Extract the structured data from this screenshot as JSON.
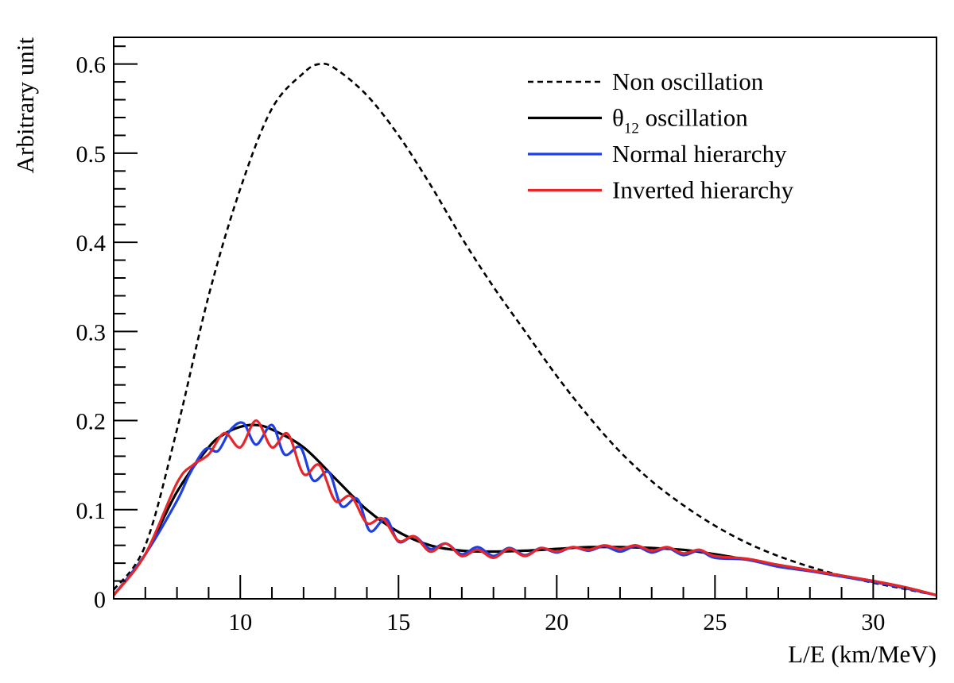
{
  "chart_data": {
    "type": "line",
    "xlabel": "L/E (km/MeV)",
    "ylabel": "Arbitrary unit",
    "xlim": [
      6,
      32
    ],
    "ylim": [
      0,
      0.63
    ],
    "x_ticks": [
      10,
      15,
      20,
      25,
      30
    ],
    "x_tick_labels": [
      "10",
      "15",
      "20",
      "25",
      "30"
    ],
    "y_ticks": [
      0,
      0.1,
      0.2,
      0.3,
      0.4,
      0.5,
      0.6
    ],
    "y_tick_labels": [
      "0",
      "0.1",
      "0.2",
      "0.3",
      "0.4",
      "0.5",
      "0.6"
    ],
    "grid": false,
    "legend_position": "top-right",
    "series": [
      {
        "name": "Non oscillation",
        "legend_main": "Non oscillation",
        "legend_sub": "",
        "legend_rest": "",
        "color": "#000000",
        "style": "dashed",
        "x": [
          6.0,
          7.0,
          8.0,
          9.0,
          10.0,
          11.0,
          12.0,
          12.5,
          13.0,
          14.0,
          15.0,
          16.0,
          17.0,
          18.0,
          19.0,
          20.0,
          21.0,
          22.0,
          23.0,
          24.0,
          25.0,
          26.0,
          27.0,
          28.0,
          29.0,
          30.0,
          31.0,
          32.0
        ],
        "y": [
          0.01,
          0.06,
          0.19,
          0.34,
          0.46,
          0.55,
          0.59,
          0.6,
          0.595,
          0.565,
          0.52,
          0.465,
          0.405,
          0.35,
          0.3,
          0.25,
          0.205,
          0.165,
          0.132,
          0.105,
          0.082,
          0.063,
          0.048,
          0.036,
          0.026,
          0.018,
          0.011,
          0.004
        ]
      },
      {
        "name": "θ12 oscillation",
        "legend_main": "θ",
        "legend_sub": "12",
        "legend_rest": " oscillation",
        "color": "#000000",
        "style": "solid",
        "x": [
          6.0,
          7.0,
          8.0,
          9.0,
          9.5,
          10.0,
          10.5,
          11.0,
          12.0,
          13.0,
          14.0,
          15.0,
          16.0,
          17.0,
          18.0,
          19.0,
          20.0,
          21.0,
          22.0,
          23.0,
          24.0,
          25.0,
          26.0,
          27.0,
          28.0,
          29.0,
          30.0,
          31.0,
          32.0
        ],
        "y": [
          0.004,
          0.05,
          0.12,
          0.17,
          0.185,
          0.193,
          0.195,
          0.19,
          0.17,
          0.135,
          0.1,
          0.075,
          0.06,
          0.054,
          0.053,
          0.054,
          0.056,
          0.058,
          0.058,
          0.057,
          0.055,
          0.05,
          0.044,
          0.038,
          0.032,
          0.026,
          0.02,
          0.013,
          0.004
        ]
      },
      {
        "name": "Normal hierarchy",
        "legend_main": "Normal hierarchy",
        "legend_sub": "",
        "legend_rest": "",
        "color": "#1f3fe6",
        "style": "solid",
        "x": [
          6.0,
          7.0,
          8.0,
          8.4,
          8.9,
          9.3,
          9.7,
          10.1,
          10.5,
          11.0,
          11.4,
          11.9,
          12.3,
          12.8,
          13.2,
          13.7,
          14.1,
          14.6,
          15.0,
          15.5,
          16.0,
          16.5,
          17.0,
          17.5,
          18.0,
          18.5,
          19.0,
          19.5,
          20.0,
          20.5,
          21.0,
          21.5,
          22.0,
          22.5,
          23.0,
          23.5,
          24.0,
          24.5,
          25.0,
          26.0,
          27.0,
          28.0,
          29.0,
          30.0,
          31.0,
          32.0
        ],
        "y": [
          0.004,
          0.05,
          0.11,
          0.14,
          0.168,
          0.166,
          0.19,
          0.197,
          0.173,
          0.195,
          0.162,
          0.17,
          0.133,
          0.142,
          0.104,
          0.112,
          0.076,
          0.09,
          0.064,
          0.07,
          0.056,
          0.062,
          0.05,
          0.058,
          0.048,
          0.057,
          0.049,
          0.057,
          0.052,
          0.058,
          0.054,
          0.059,
          0.053,
          0.059,
          0.052,
          0.057,
          0.049,
          0.054,
          0.046,
          0.044,
          0.036,
          0.031,
          0.025,
          0.019,
          0.012,
          0.004
        ]
      },
      {
        "name": "Inverted hierarchy",
        "legend_main": "Inverted hierarchy",
        "legend_sub": "",
        "legend_rest": "",
        "color": "#e8262a",
        "style": "solid",
        "x": [
          6.0,
          7.0,
          8.0,
          8.5,
          9.0,
          9.5,
          10.0,
          10.5,
          11.0,
          11.5,
          12.0,
          12.5,
          13.0,
          13.5,
          14.0,
          14.5,
          15.0,
          15.5,
          16.0,
          16.5,
          17.0,
          17.5,
          18.0,
          18.5,
          19.0,
          19.5,
          20.0,
          20.5,
          21.0,
          21.5,
          22.0,
          22.5,
          23.0,
          23.5,
          24.0,
          24.5,
          25.0,
          26.0,
          27.0,
          28.0,
          29.0,
          30.0,
          31.0,
          32.0
        ],
        "y": [
          0.004,
          0.05,
          0.13,
          0.15,
          0.162,
          0.186,
          0.17,
          0.2,
          0.17,
          0.185,
          0.14,
          0.15,
          0.11,
          0.115,
          0.085,
          0.09,
          0.065,
          0.07,
          0.053,
          0.062,
          0.048,
          0.055,
          0.046,
          0.056,
          0.048,
          0.057,
          0.053,
          0.058,
          0.055,
          0.06,
          0.056,
          0.06,
          0.054,
          0.058,
          0.051,
          0.055,
          0.048,
          0.045,
          0.038,
          0.032,
          0.026,
          0.02,
          0.013,
          0.004
        ]
      }
    ]
  }
}
